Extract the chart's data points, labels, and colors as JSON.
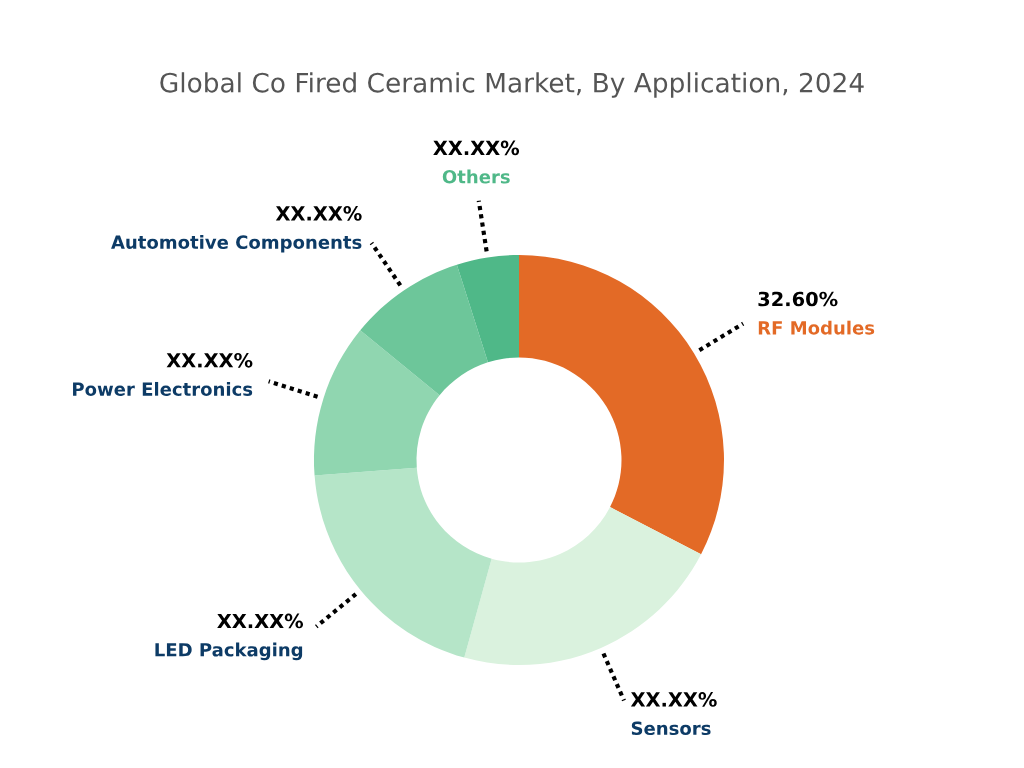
{
  "chart_data": {
    "type": "donut",
    "title": "Global Co Fired Ceramic Market, By Application, 2024",
    "categories": [
      "RF Modules",
      "Sensors",
      "LED Packaging",
      "Power Electronics",
      "Automotive Components",
      "Others"
    ],
    "values": [
      32.6,
      21.7,
      19.5,
      12.1,
      9.2,
      4.9
    ],
    "colors": [
      "#e36a26",
      "#daf2de",
      "#b5e5c8",
      "#90d6b0",
      "#6dc69a",
      "#4fb888"
    ],
    "value_labels": [
      "32.60%",
      "XX.XX%",
      "XX.XX%",
      "XX.XX%",
      "XX.XX%",
      "XX.XX%"
    ],
    "legend": false
  }
}
